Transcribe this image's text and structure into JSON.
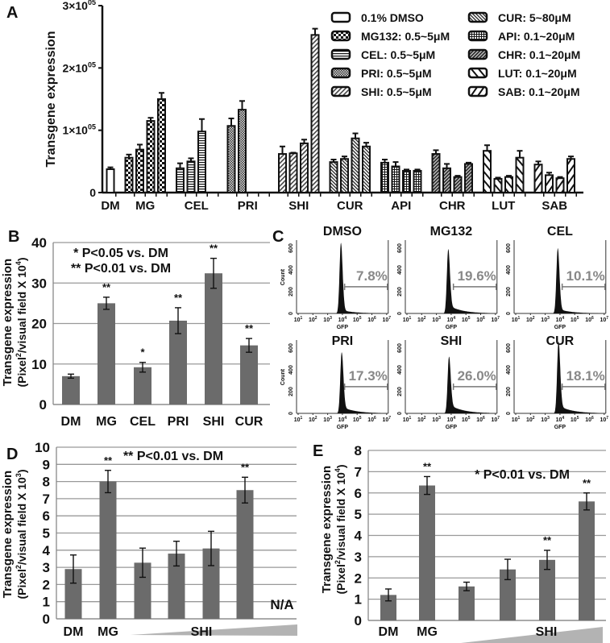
{
  "chart_data": [
    {
      "panel": "A",
      "type": "bar",
      "ylabel": "Transgene expression",
      "ylim": [
        0,
        300000
      ],
      "yticks": [
        {
          "value": 0,
          "label": "0",
          "exp": ""
        },
        {
          "value": 100000,
          "label": "1×10",
          "exp": "05"
        },
        {
          "value": 200000,
          "label": "2×10",
          "exp": "05"
        },
        {
          "value": 300000,
          "label": "3×10",
          "exp": "05"
        }
      ],
      "groups": [
        {
          "name": "DM",
          "pattern": "open",
          "values": [
            37500
          ],
          "errors": [
            3000
          ]
        },
        {
          "name": "MG",
          "pattern": "mg",
          "values": [
            56000,
            69000,
            115000,
            150000
          ],
          "errors": [
            5000,
            8000,
            5000,
            10000
          ]
        },
        {
          "name": "CEL",
          "pattern": "cel",
          "values": [
            39000,
            50000,
            98000
          ],
          "errors": [
            8000,
            5000,
            20000
          ]
        },
        {
          "name": "PRI",
          "pattern": "pri",
          "values": [
            107000,
            133000,
            0,
            0
          ],
          "errors": [
            12000,
            14000,
            0,
            0
          ]
        },
        {
          "name": "SHI",
          "pattern": "shi",
          "values": [
            62000,
            63000,
            79000,
            253000
          ],
          "errors": [
            12000,
            1000,
            6000,
            10000
          ]
        },
        {
          "name": "CUR",
          "pattern": "cur",
          "values": [
            49000,
            54000,
            87000,
            74000
          ],
          "errors": [
            4000,
            4000,
            8000,
            6000
          ]
        },
        {
          "name": "API",
          "pattern": "api",
          "values": [
            48000,
            42000,
            35000,
            35000
          ],
          "errors": [
            5000,
            7000,
            2000,
            2000
          ]
        },
        {
          "name": "CHR",
          "pattern": "chr",
          "values": [
            62000,
            39000,
            25000,
            46000
          ],
          "errors": [
            6000,
            7000,
            2000,
            2000
          ]
        },
        {
          "name": "LUT",
          "pattern": "lut",
          "values": [
            67000,
            22000,
            25000,
            56000
          ],
          "errors": [
            9000,
            2000,
            2000,
            11000
          ]
        },
        {
          "name": "SAB",
          "pattern": "sab",
          "values": [
            45000,
            28000,
            23000,
            54000
          ],
          "errors": [
            5000,
            4000,
            2000,
            4000
          ]
        }
      ],
      "legend": [
        {
          "label": "0.1% DMSO",
          "pattern": "open"
        },
        {
          "label": "MG132: 0.5~5μM",
          "pattern": "mg"
        },
        {
          "label": "CEL: 0.5~5μM",
          "pattern": "cel"
        },
        {
          "label": "PRI: 0.5~5μM",
          "pattern": "pri"
        },
        {
          "label": "SHI: 0.5~5μM",
          "pattern": "shi"
        },
        {
          "label": "CUR: 5~80μM",
          "pattern": "cur"
        },
        {
          "label": "API: 0.1~20μM",
          "pattern": "api"
        },
        {
          "label": "CHR: 0.1~20μM",
          "pattern": "chr"
        },
        {
          "label": "LUT: 0.1~20μM",
          "pattern": "lut"
        },
        {
          "label": "SAB: 0.1~20μM",
          "pattern": "sab"
        }
      ],
      "legend_placement": "top-right"
    },
    {
      "panel": "B",
      "type": "bar",
      "ylabel": "Transgene expression",
      "ylabel2": [
        "(Pixel",
        "2",
        "/visual field X 10",
        "4",
        ")"
      ],
      "ylim": [
        0,
        40
      ],
      "yticks": [
        0,
        10,
        20,
        30,
        40
      ],
      "grid": true,
      "categories": [
        "DM",
        "MG",
        "CEL",
        "PRI",
        "SHI",
        "CUR"
      ],
      "values": [
        7.0,
        25.0,
        9.2,
        20.7,
        32.4,
        14.6
      ],
      "errors": [
        0.5,
        1.5,
        1.2,
        3.2,
        3.7,
        1.7
      ],
      "significance": [
        "",
        "**",
        "*",
        "**",
        "**",
        "**"
      ],
      "annotations": [
        "* P<0.05 vs. DM",
        "** P<0.01 vs. DM"
      ]
    },
    {
      "panel": "C",
      "type": "histogram",
      "xlabel": "GFP",
      "ylabel": "Count",
      "xtick_base": "10",
      "xtick_exps": [
        "1",
        "2",
        "3",
        "4",
        "5",
        "6",
        "7"
      ],
      "yticks": [
        0,
        200,
        400,
        600
      ],
      "plots": [
        {
          "title": "DMSO",
          "gate": "7.8%",
          "peak_count": 650,
          "peak_log": 3.9,
          "tail": 0.05
        },
        {
          "title": "MG132",
          "gate": "19.6%",
          "peak_count": 590,
          "peak_log": 3.8,
          "tail": 0.13
        },
        {
          "title": "CEL",
          "gate": "10.1%",
          "peak_count": 600,
          "peak_log": 3.85,
          "tail": 0.07
        },
        {
          "title": "PRI",
          "gate": "17.3%",
          "peak_count": 560,
          "peak_log": 3.95,
          "tail": 0.11
        },
        {
          "title": "SHI",
          "gate": "26.0%",
          "peak_count": 520,
          "peak_log": 3.85,
          "tail": 0.16
        },
        {
          "title": "CUR",
          "gate": "18.1%",
          "peak_count": 660,
          "peak_log": 3.9,
          "tail": 0.11
        }
      ]
    },
    {
      "panel": "D",
      "type": "bar",
      "ylabel": "Transgene expression",
      "ylabel2": [
        "(Pixel",
        "2",
        "/visual field X 10",
        "3",
        ")"
      ],
      "ylim": [
        0,
        10
      ],
      "yticks": [
        0,
        1,
        2,
        3,
        4,
        5,
        6,
        7,
        8,
        9,
        10
      ],
      "grid": true,
      "xlabels": [
        "DM",
        "MG",
        "SHI"
      ],
      "values": [
        2.9,
        8.0,
        3.27,
        3.8,
        4.1,
        7.5,
        null
      ],
      "errors": [
        0.82,
        0.65,
        0.85,
        0.72,
        1.0,
        0.75,
        null
      ],
      "significance": [
        "",
        "**",
        "",
        "",
        "",
        "**",
        ""
      ],
      "na_label": "N/A",
      "annotations": [
        "** P<0.01 vs. DM"
      ]
    },
    {
      "panel": "E",
      "type": "bar",
      "ylabel": "Transgene expression",
      "ylabel2": [
        "(Pixel",
        "2",
        "/visual field X 10",
        "4",
        ")"
      ],
      "ylim": [
        0,
        8
      ],
      "yticks": [
        0,
        1,
        2,
        3,
        4,
        5,
        6,
        7,
        8
      ],
      "grid": true,
      "xlabels": [
        "DM",
        "MG",
        "SHI"
      ],
      "values": [
        1.2,
        6.35,
        1.6,
        2.4,
        2.85,
        5.6
      ],
      "errors": [
        0.28,
        0.42,
        0.2,
        0.48,
        0.45,
        0.4
      ],
      "significance": [
        "",
        "**",
        "",
        "",
        "**",
        "**"
      ],
      "annotations": [
        "* P<0.01 vs. DM"
      ]
    }
  ]
}
